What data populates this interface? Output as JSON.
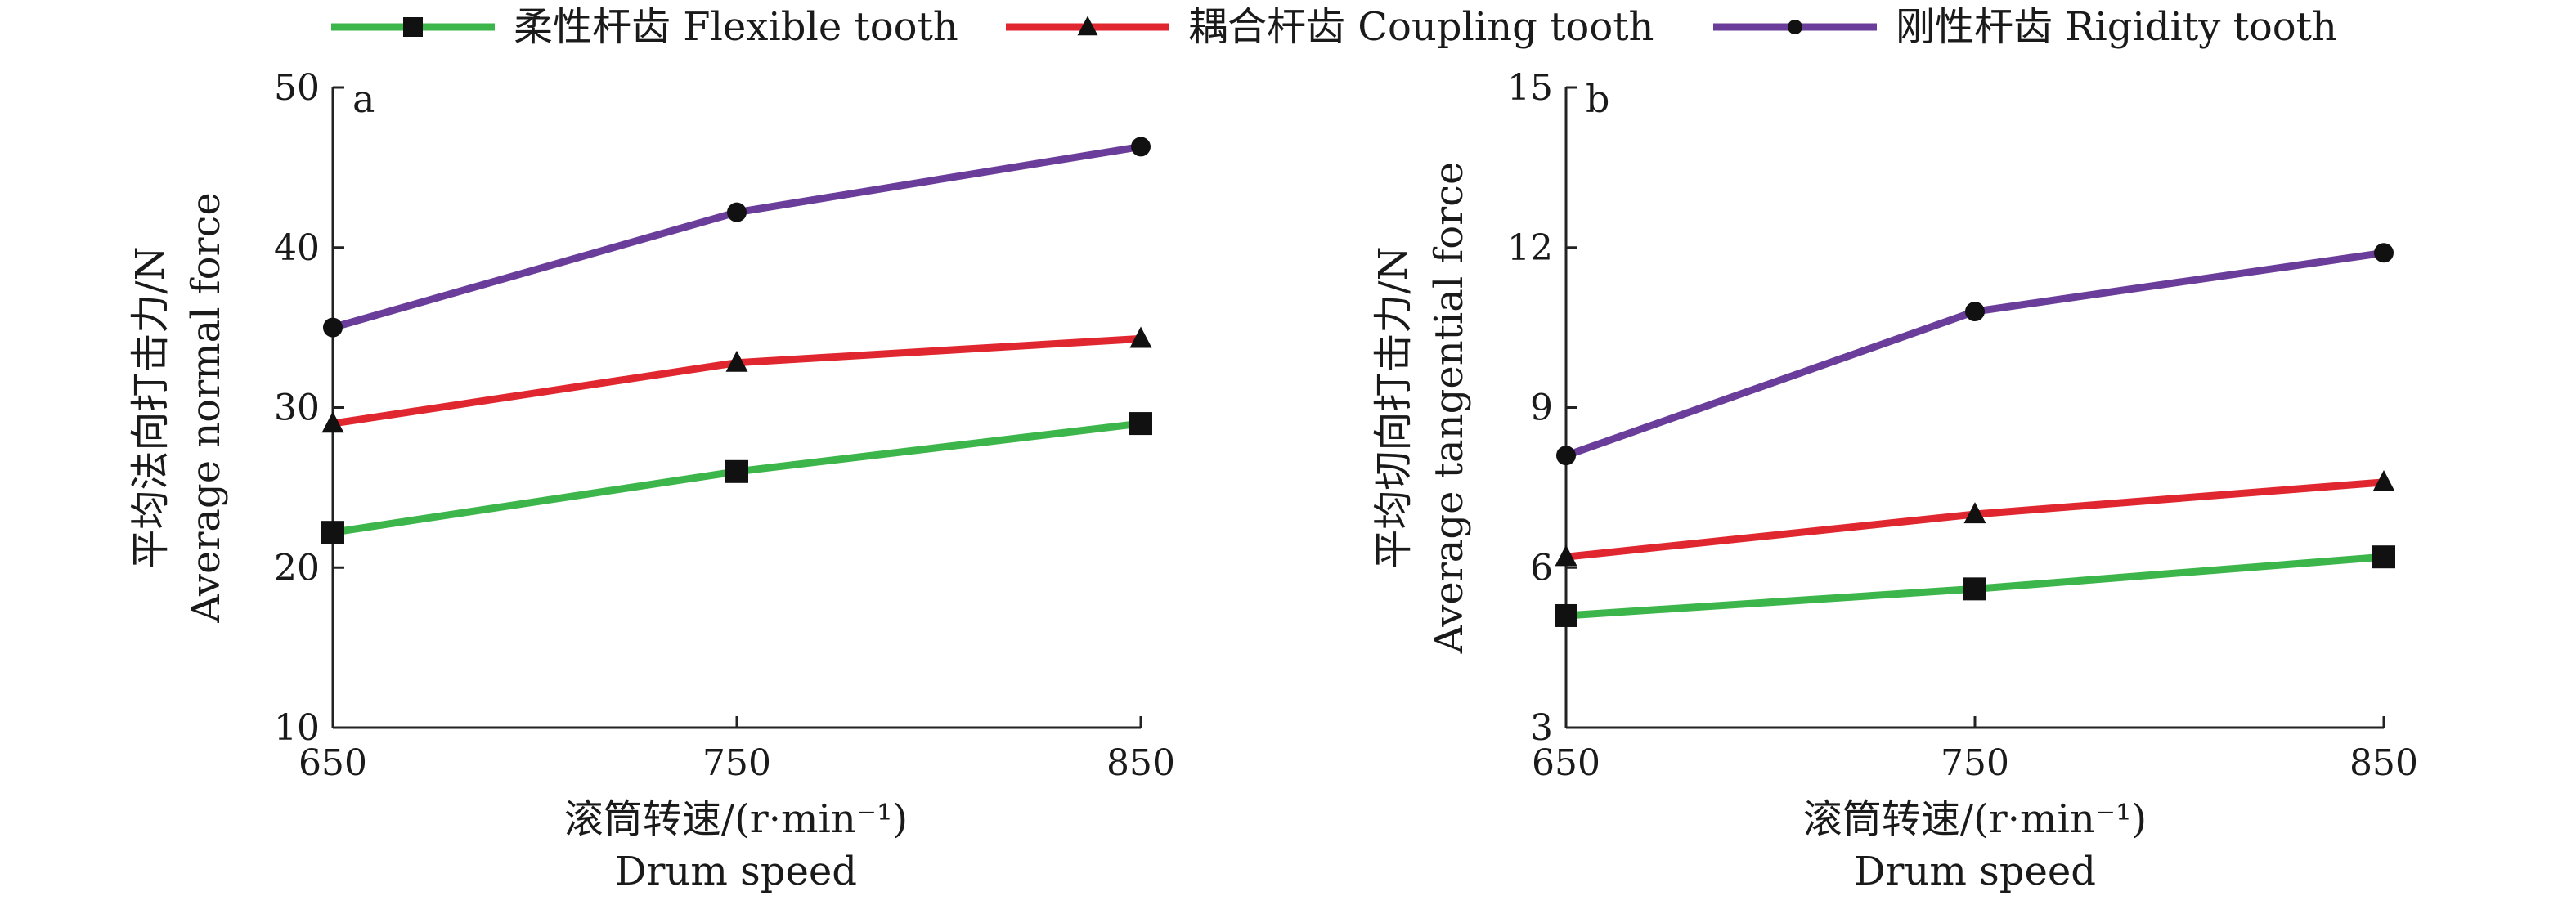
{
  "legend": [
    {
      "label": "柔性杆齿 Flexible tooth",
      "color": "#3cb54a",
      "marker": "square"
    },
    {
      "label": "耦合杆齿 Coupling tooth",
      "color": "#e0262e",
      "marker": "triangle"
    },
    {
      "label": "刚性杆齿 Rigidity tooth",
      "color": "#6a3d9a",
      "marker": "circle"
    }
  ],
  "chart_data": [
    {
      "type": "line",
      "panel": "a",
      "x": [
        650,
        750,
        850
      ],
      "xlabel": [
        "滚筒转速/(r·min⁻¹)",
        "Drum speed"
      ],
      "ylabel": [
        "平均法向打击力/N",
        "Average normal force"
      ],
      "xlim": [
        650,
        850
      ],
      "ylim": [
        10,
        50
      ],
      "xticks": [
        650,
        750,
        850
      ],
      "yticks": [
        10,
        20,
        30,
        40,
        50
      ],
      "grid": false,
      "series": [
        {
          "name": "柔性杆齿 Flexible tooth",
          "values": [
            22.2,
            26.0,
            29.0
          ]
        },
        {
          "name": "耦合杆齿 Coupling tooth",
          "values": [
            29.0,
            32.8,
            34.3
          ]
        },
        {
          "name": "刚性杆齿 Rigidity tooth",
          "values": [
            35.0,
            42.2,
            46.3
          ]
        }
      ]
    },
    {
      "type": "line",
      "panel": "b",
      "x": [
        650,
        750,
        850
      ],
      "xlabel": [
        "滚筒转速/(r·min⁻¹)",
        "Drum speed"
      ],
      "ylabel": [
        "平均切向打击力/N",
        "Average tangential force"
      ],
      "xlim": [
        650,
        850
      ],
      "ylim": [
        3,
        15
      ],
      "xticks": [
        650,
        750,
        850
      ],
      "yticks": [
        3,
        6,
        9,
        12,
        15
      ],
      "grid": false,
      "series": [
        {
          "name": "柔性杆齿 Flexible tooth",
          "values": [
            5.1,
            5.6,
            6.2
          ]
        },
        {
          "name": "耦合杆齿 Coupling tooth",
          "values": [
            6.2,
            7.0,
            7.6
          ]
        },
        {
          "name": "刚性杆齿 Rigidity tooth",
          "values": [
            8.1,
            10.8,
            11.9
          ]
        }
      ]
    }
  ]
}
